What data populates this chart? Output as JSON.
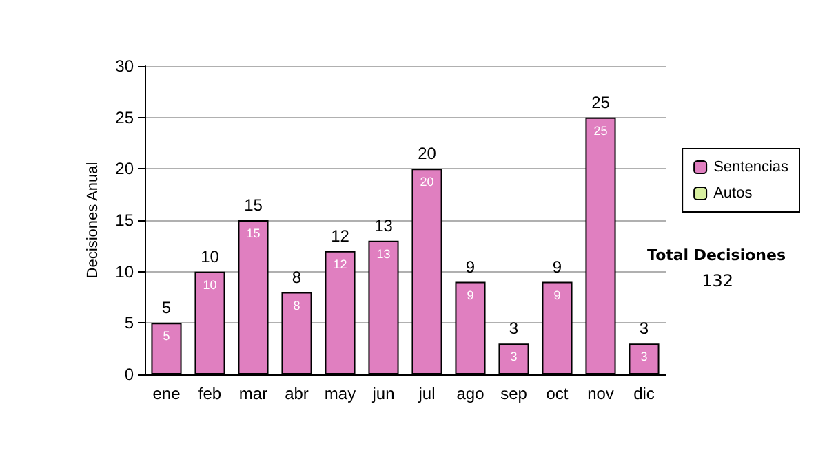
{
  "chart_data": {
    "type": "bar",
    "ylabel": "Decisiones Anual",
    "categories": [
      "ene",
      "feb",
      "mar",
      "abr",
      "may",
      "jun",
      "jul",
      "ago",
      "sep",
      "oct",
      "nov",
      "dic"
    ],
    "series": [
      {
        "name": "Sentencias",
        "color": "#e07fc0",
        "values": [
          5,
          10,
          15,
          8,
          12,
          13,
          20,
          9,
          3,
          9,
          25,
          3
        ],
        "value_labels": [
          "5",
          "10",
          "15",
          "8",
          "12",
          "13",
          "20",
          "9",
          "3",
          "9",
          "25",
          "3"
        ]
      },
      {
        "name": "Autos",
        "color": "#d8f0a0",
        "values": [
          0,
          0,
          0,
          0,
          0,
          0,
          0,
          0,
          0,
          0,
          0,
          0
        ]
      }
    ],
    "stacked": true,
    "totals": [
      "5",
      "10",
      "15",
      "8",
      "12",
      "13",
      "20",
      "9",
      "3",
      "9",
      "25",
      "3"
    ],
    "ylim": [
      0,
      30
    ],
    "yticks": [
      0,
      5,
      10,
      15,
      20,
      25,
      30
    ],
    "grid": "y",
    "legend": "right",
    "annotations": [
      "Total Decisiones",
      "132"
    ]
  }
}
